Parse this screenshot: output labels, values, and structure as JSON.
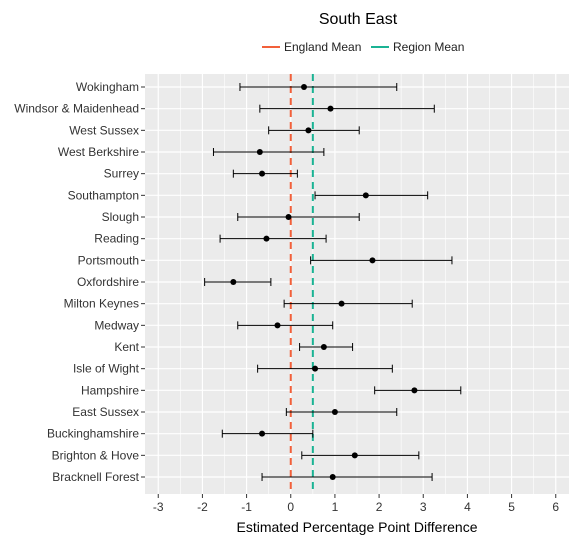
{
  "chart_data": {
    "type": "scatter",
    "subtype": "dot-with-error-bars",
    "title": "South East",
    "xlabel": "Estimated Percentage Point Difference",
    "ylabel": "",
    "xlim": [
      -3.3,
      6.3
    ],
    "xticks": [
      -3,
      -2,
      -1,
      0,
      1,
      2,
      3,
      4,
      5,
      6
    ],
    "grid": true,
    "legend_position": "top",
    "legend": [
      {
        "name": "England Mean",
        "color": "#f2603a"
      },
      {
        "name": "Region Mean",
        "color": "#1ab394"
      }
    ],
    "reference_lines": {
      "england_mean": 0.0,
      "region_mean": 0.5
    },
    "categories": [
      "Wokingham",
      "Windsor & Maidenhead",
      "West Sussex",
      "West Berkshire",
      "Surrey",
      "Southampton",
      "Slough",
      "Reading",
      "Portsmouth",
      "Oxfordshire",
      "Milton Keynes",
      "Medway",
      "Kent",
      "Isle of Wight",
      "Hampshire",
      "East Sussex",
      "Buckinghamshire",
      "Brighton & Hove",
      "Bracknell Forest"
    ],
    "points": [
      {
        "label": "Wokingham",
        "value": 0.3,
        "lower": -1.15,
        "upper": 2.4
      },
      {
        "label": "Windsor & Maidenhead",
        "value": 0.9,
        "lower": -0.7,
        "upper": 3.25
      },
      {
        "label": "West Sussex",
        "value": 0.4,
        "lower": -0.5,
        "upper": 1.55
      },
      {
        "label": "West Berkshire",
        "value": -0.7,
        "lower": -1.75,
        "upper": 0.75
      },
      {
        "label": "Surrey",
        "value": -0.65,
        "lower": -1.3,
        "upper": 0.15
      },
      {
        "label": "Southampton",
        "value": 1.7,
        "lower": 0.55,
        "upper": 3.1
      },
      {
        "label": "Slough",
        "value": -0.05,
        "lower": -1.2,
        "upper": 1.55
      },
      {
        "label": "Reading",
        "value": -0.55,
        "lower": -1.6,
        "upper": 0.8
      },
      {
        "label": "Portsmouth",
        "value": 1.85,
        "lower": 0.45,
        "upper": 3.65
      },
      {
        "label": "Oxfordshire",
        "value": -1.3,
        "lower": -1.95,
        "upper": -0.45
      },
      {
        "label": "Milton Keynes",
        "value": 1.15,
        "lower": -0.15,
        "upper": 2.75
      },
      {
        "label": "Medway",
        "value": -0.3,
        "lower": -1.2,
        "upper": 0.95
      },
      {
        "label": "Kent",
        "value": 0.75,
        "lower": 0.2,
        "upper": 1.4
      },
      {
        "label": "Isle of Wight",
        "value": 0.55,
        "lower": -0.75,
        "upper": 2.3
      },
      {
        "label": "Hampshire",
        "value": 2.8,
        "lower": 1.9,
        "upper": 3.85
      },
      {
        "label": "East Sussex",
        "value": 1.0,
        "lower": -0.1,
        "upper": 2.4
      },
      {
        "label": "Buckinghamshire",
        "value": -0.65,
        "lower": -1.55,
        "upper": 0.5
      },
      {
        "label": "Brighton & Hove",
        "value": 1.45,
        "lower": 0.25,
        "upper": 2.9
      },
      {
        "label": "Bracknell Forest",
        "value": 0.95,
        "lower": -0.65,
        "upper": 3.2
      }
    ],
    "colors": {
      "panel_background": "#ebebeb",
      "grid": "#ffffff",
      "point": "#000000",
      "errorbar": "#000000"
    }
  }
}
